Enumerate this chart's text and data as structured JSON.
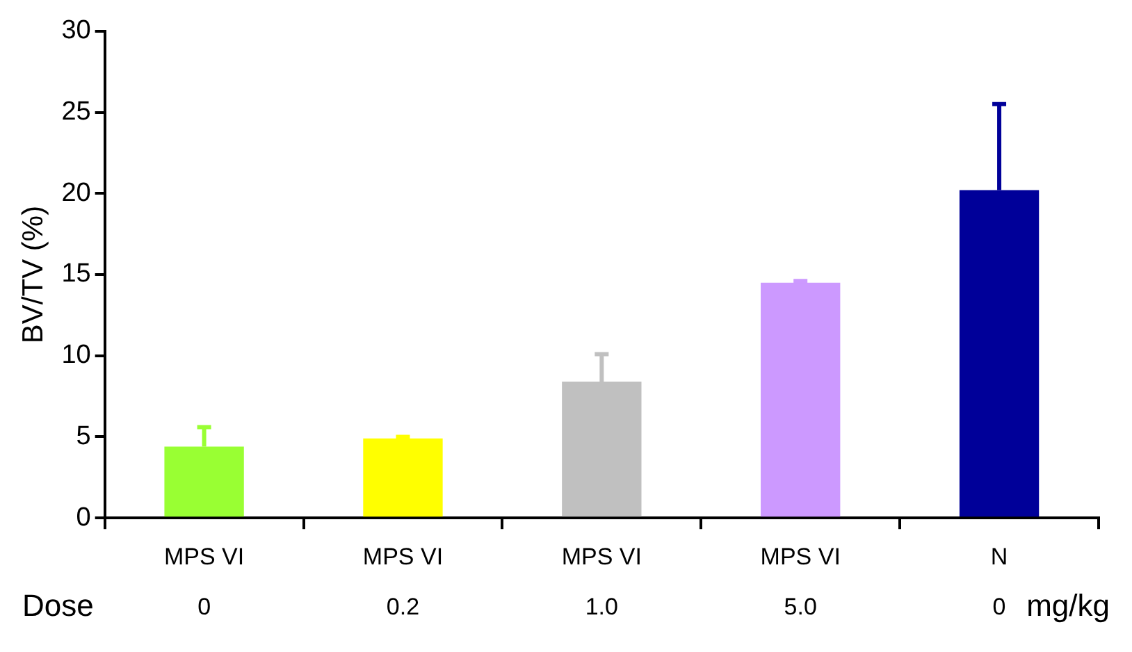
{
  "chart_data": {
    "type": "bar",
    "ylabel": "BV/TV (%)",
    "categories": [
      "MPS VI\n0",
      "MPS VI\n0.2",
      "MPS VI\n1.0",
      "MPS VI\n5.0",
      "N\n0"
    ],
    "values": [
      4.4,
      4.9,
      8.4,
      14.5,
      20.2
    ],
    "colors": [
      "#99ff33",
      "#ffff00",
      "#c0c0c0",
      "#cc99ff",
      "#000099"
    ],
    "errors": [
      [
        4.4,
        5.6
      ],
      [
        4.9,
        5.0
      ],
      [
        8.4,
        10.1
      ],
      [
        14.5,
        14.6
      ],
      [
        20.2,
        25.5
      ]
    ],
    "ylim": [
      0,
      30
    ],
    "yticks": [
      0,
      5,
      10,
      15,
      20,
      25,
      30
    ],
    "grid": false,
    "legend": false,
    "annotations": [
      "Dose",
      "mg/kg"
    ]
  }
}
